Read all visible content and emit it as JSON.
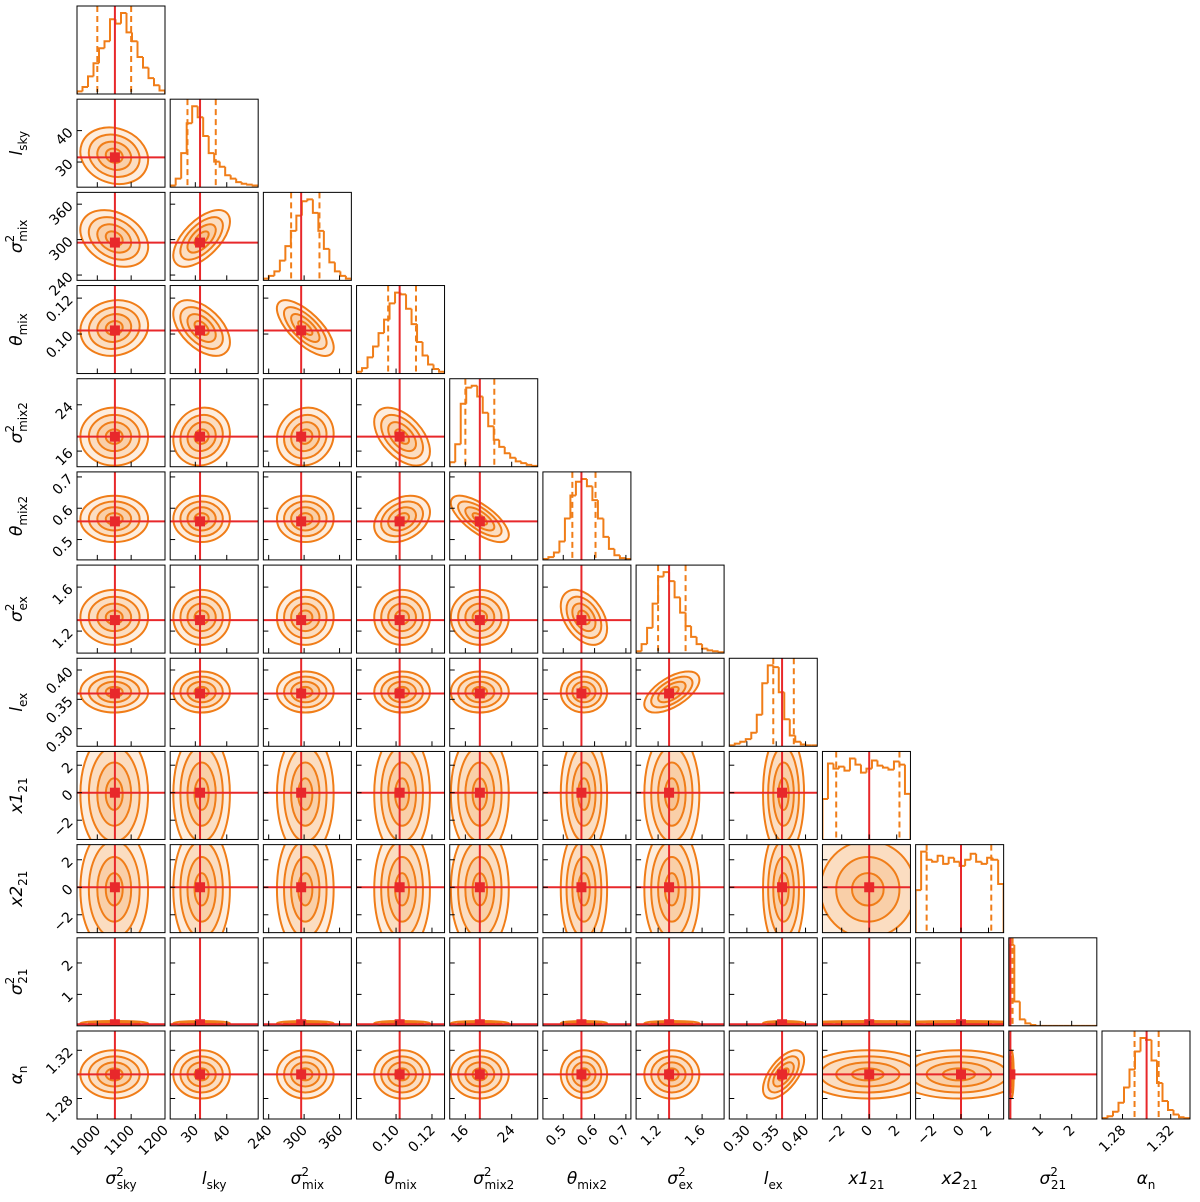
{
  "chart_data": {
    "type": "corner",
    "color": "#f07d18",
    "truth_color": "#e8282b",
    "params": [
      {
        "label": {
          "symbol": "σ",
          "sup": "2",
          "sub": "sky"
        },
        "lim": [
          940,
          1200
        ],
        "ticks": [
          1000,
          1100,
          1200
        ],
        "truth": 1052,
        "quantiles": [
          1000,
          1100
        ],
        "hist": [
          3,
          8,
          20,
          35,
          52,
          60,
          85,
          80,
          92,
          70,
          60,
          42,
          30,
          18,
          10,
          4
        ]
      },
      {
        "label": {
          "symbol": "l",
          "sub": "sky"
        },
        "lim": [
          22,
          50
        ],
        "ticks": [
          30,
          40
        ],
        "truth": 31.5,
        "quantiles": [
          27.5,
          36.5
        ],
        "hist": [
          2,
          10,
          40,
          75,
          95,
          82,
          60,
          40,
          30,
          24,
          14,
          10,
          6,
          4,
          3,
          2
        ]
      },
      {
        "label": {
          "symbol": "σ",
          "sup": "2",
          "sub": "mix"
        },
        "lim": [
          231,
          380
        ],
        "ticks": [
          240,
          300,
          360
        ],
        "truth": 295,
        "quantiles": [
          278,
          326
        ],
        "hist": [
          2,
          5,
          10,
          22,
          38,
          55,
          72,
          88,
          90,
          75,
          55,
          35,
          20,
          10,
          5,
          2
        ]
      },
      {
        "label": {
          "symbol": "θ",
          "sub": "mix"
        },
        "lim": [
          0.078,
          0.127
        ],
        "ticks": [
          {
            "value": 0.1,
            "label": "0.10"
          },
          {
            "value": 0.12,
            "label": "0.12"
          }
        ],
        "truth": 0.102,
        "quantiles": [
          0.0956,
          0.1111
        ],
        "hist": [
          2,
          6,
          18,
          30,
          45,
          60,
          78,
          90,
          88,
          72,
          55,
          35,
          20,
          10,
          5,
          2
        ]
      },
      {
        "label": {
          "symbol": "σ",
          "sup": "2",
          "sub": "mix2"
        },
        "lim": [
          13.3,
          28.5
        ],
        "ticks": [
          16,
          24
        ],
        "truth": 18.5,
        "quantiles": [
          16,
          21
        ],
        "hist": [
          5,
          25,
          70,
          88,
          90,
          78,
          60,
          45,
          30,
          22,
          15,
          10,
          6,
          4,
          2,
          1
        ]
      },
      {
        "label": {
          "symbol": "θ",
          "sub": "mix2"
        },
        "lim": [
          0.435,
          0.716
        ],
        "ticks": [
          0.5,
          0.6,
          0.7
        ],
        "truth": 0.558,
        "quantiles": [
          0.529,
          0.603
        ],
        "hist": [
          1,
          3,
          8,
          20,
          45,
          70,
          85,
          88,
          80,
          65,
          45,
          25,
          12,
          5,
          2,
          1
        ]
      },
      {
        "label": {
          "symbol": "σ",
          "sup": "2",
          "sub": "ex"
        },
        "lim": [
          1.0,
          1.8
        ],
        "ticks": [
          1.2,
          1.6
        ],
        "truth": 1.3,
        "quantiles": [
          1.2,
          1.45
        ],
        "hist": [
          2,
          10,
          28,
          55,
          85,
          90,
          80,
          62,
          45,
          30,
          18,
          10,
          5,
          3,
          2,
          1
        ]
      },
      {
        "label": {
          "symbol": "l",
          "sub": "ex"
        },
        "lim": [
          0.27,
          0.42
        ],
        "ticks": [
          {
            "value": 0.3,
            "label": "0.30"
          },
          0.35,
          {
            "value": 0.4,
            "label": "0.40"
          }
        ],
        "truth": 0.36,
        "quantiles": [
          0.345,
          0.38
        ],
        "hist": [
          1,
          3,
          5,
          8,
          15,
          35,
          70,
          90,
          88,
          60,
          30,
          12,
          5,
          2,
          1,
          1
        ]
      },
      {
        "label": {
          "symbol": "x1",
          "sub": "21"
        },
        "lim": [
          -3.4,
          3.0
        ],
        "ticks": [
          {
            "value": -2,
            "label": "−2"
          },
          0,
          2
        ],
        "truth": 0,
        "quantiles": [
          -2.4,
          2.2
        ],
        "hist": [
          40,
          75,
          70,
          72,
          68,
          80,
          74,
          66,
          70,
          78,
          73,
          71,
          69,
          77,
          74,
          45
        ]
      },
      {
        "label": {
          "symbol": "x2",
          "sub": "21"
        },
        "lim": [
          -3.3,
          3.1
        ],
        "ticks": [
          {
            "value": -2,
            "label": "−2"
          },
          0,
          2
        ],
        "truth": 0,
        "quantiles": [
          -2.5,
          2.2
        ],
        "hist": [
          42,
          80,
          72,
          70,
          76,
          68,
          74,
          70,
          66,
          72,
          78,
          70,
          68,
          74,
          72,
          48
        ]
      },
      {
        "label": {
          "symbol": "σ",
          "sup": "2",
          "sub": "21"
        },
        "lim": [
          0,
          2.8
        ],
        "ticks": [
          1,
          2
        ],
        "truth": 0.05,
        "quantiles": [
          0.05,
          0.12
        ],
        "hist": [
          100,
          30,
          8,
          3,
          1,
          0,
          0,
          0,
          0,
          0,
          0,
          0,
          0,
          0,
          0,
          0
        ]
      },
      {
        "label": {
          "symbol": "α",
          "sub": "n"
        },
        "lim": [
          1.263,
          1.336
        ],
        "ticks": [
          1.28,
          1.32
        ],
        "truth": 1.3,
        "quantiles": [
          1.29,
          1.31
        ],
        "hist": [
          1,
          3,
          8,
          18,
          35,
          55,
          75,
          90,
          88,
          65,
          40,
          20,
          10,
          5,
          2,
          1
        ]
      }
    ],
    "corr": [
      [
        -0.15
      ],
      [
        -0.3,
        0.6
      ],
      [
        0.1,
        -0.5,
        -0.7
      ],
      [
        0,
        0.1,
        0.1,
        -0.5
      ],
      [
        0,
        0,
        0,
        0.3,
        -0.7
      ],
      [
        0,
        0,
        0,
        0,
        0,
        -0.4
      ],
      [
        0,
        0,
        0,
        0,
        0,
        0,
        0.6
      ],
      [
        0,
        0,
        0,
        0,
        0,
        0,
        0,
        0
      ],
      [
        0,
        0,
        0,
        0,
        0,
        0,
        0,
        0,
        0
      ],
      [
        0,
        0,
        0,
        0,
        0,
        0,
        0,
        0,
        0,
        0
      ],
      [
        0,
        0,
        0,
        0,
        0,
        0,
        0,
        0.6,
        0,
        0,
        0
      ]
    ]
  }
}
